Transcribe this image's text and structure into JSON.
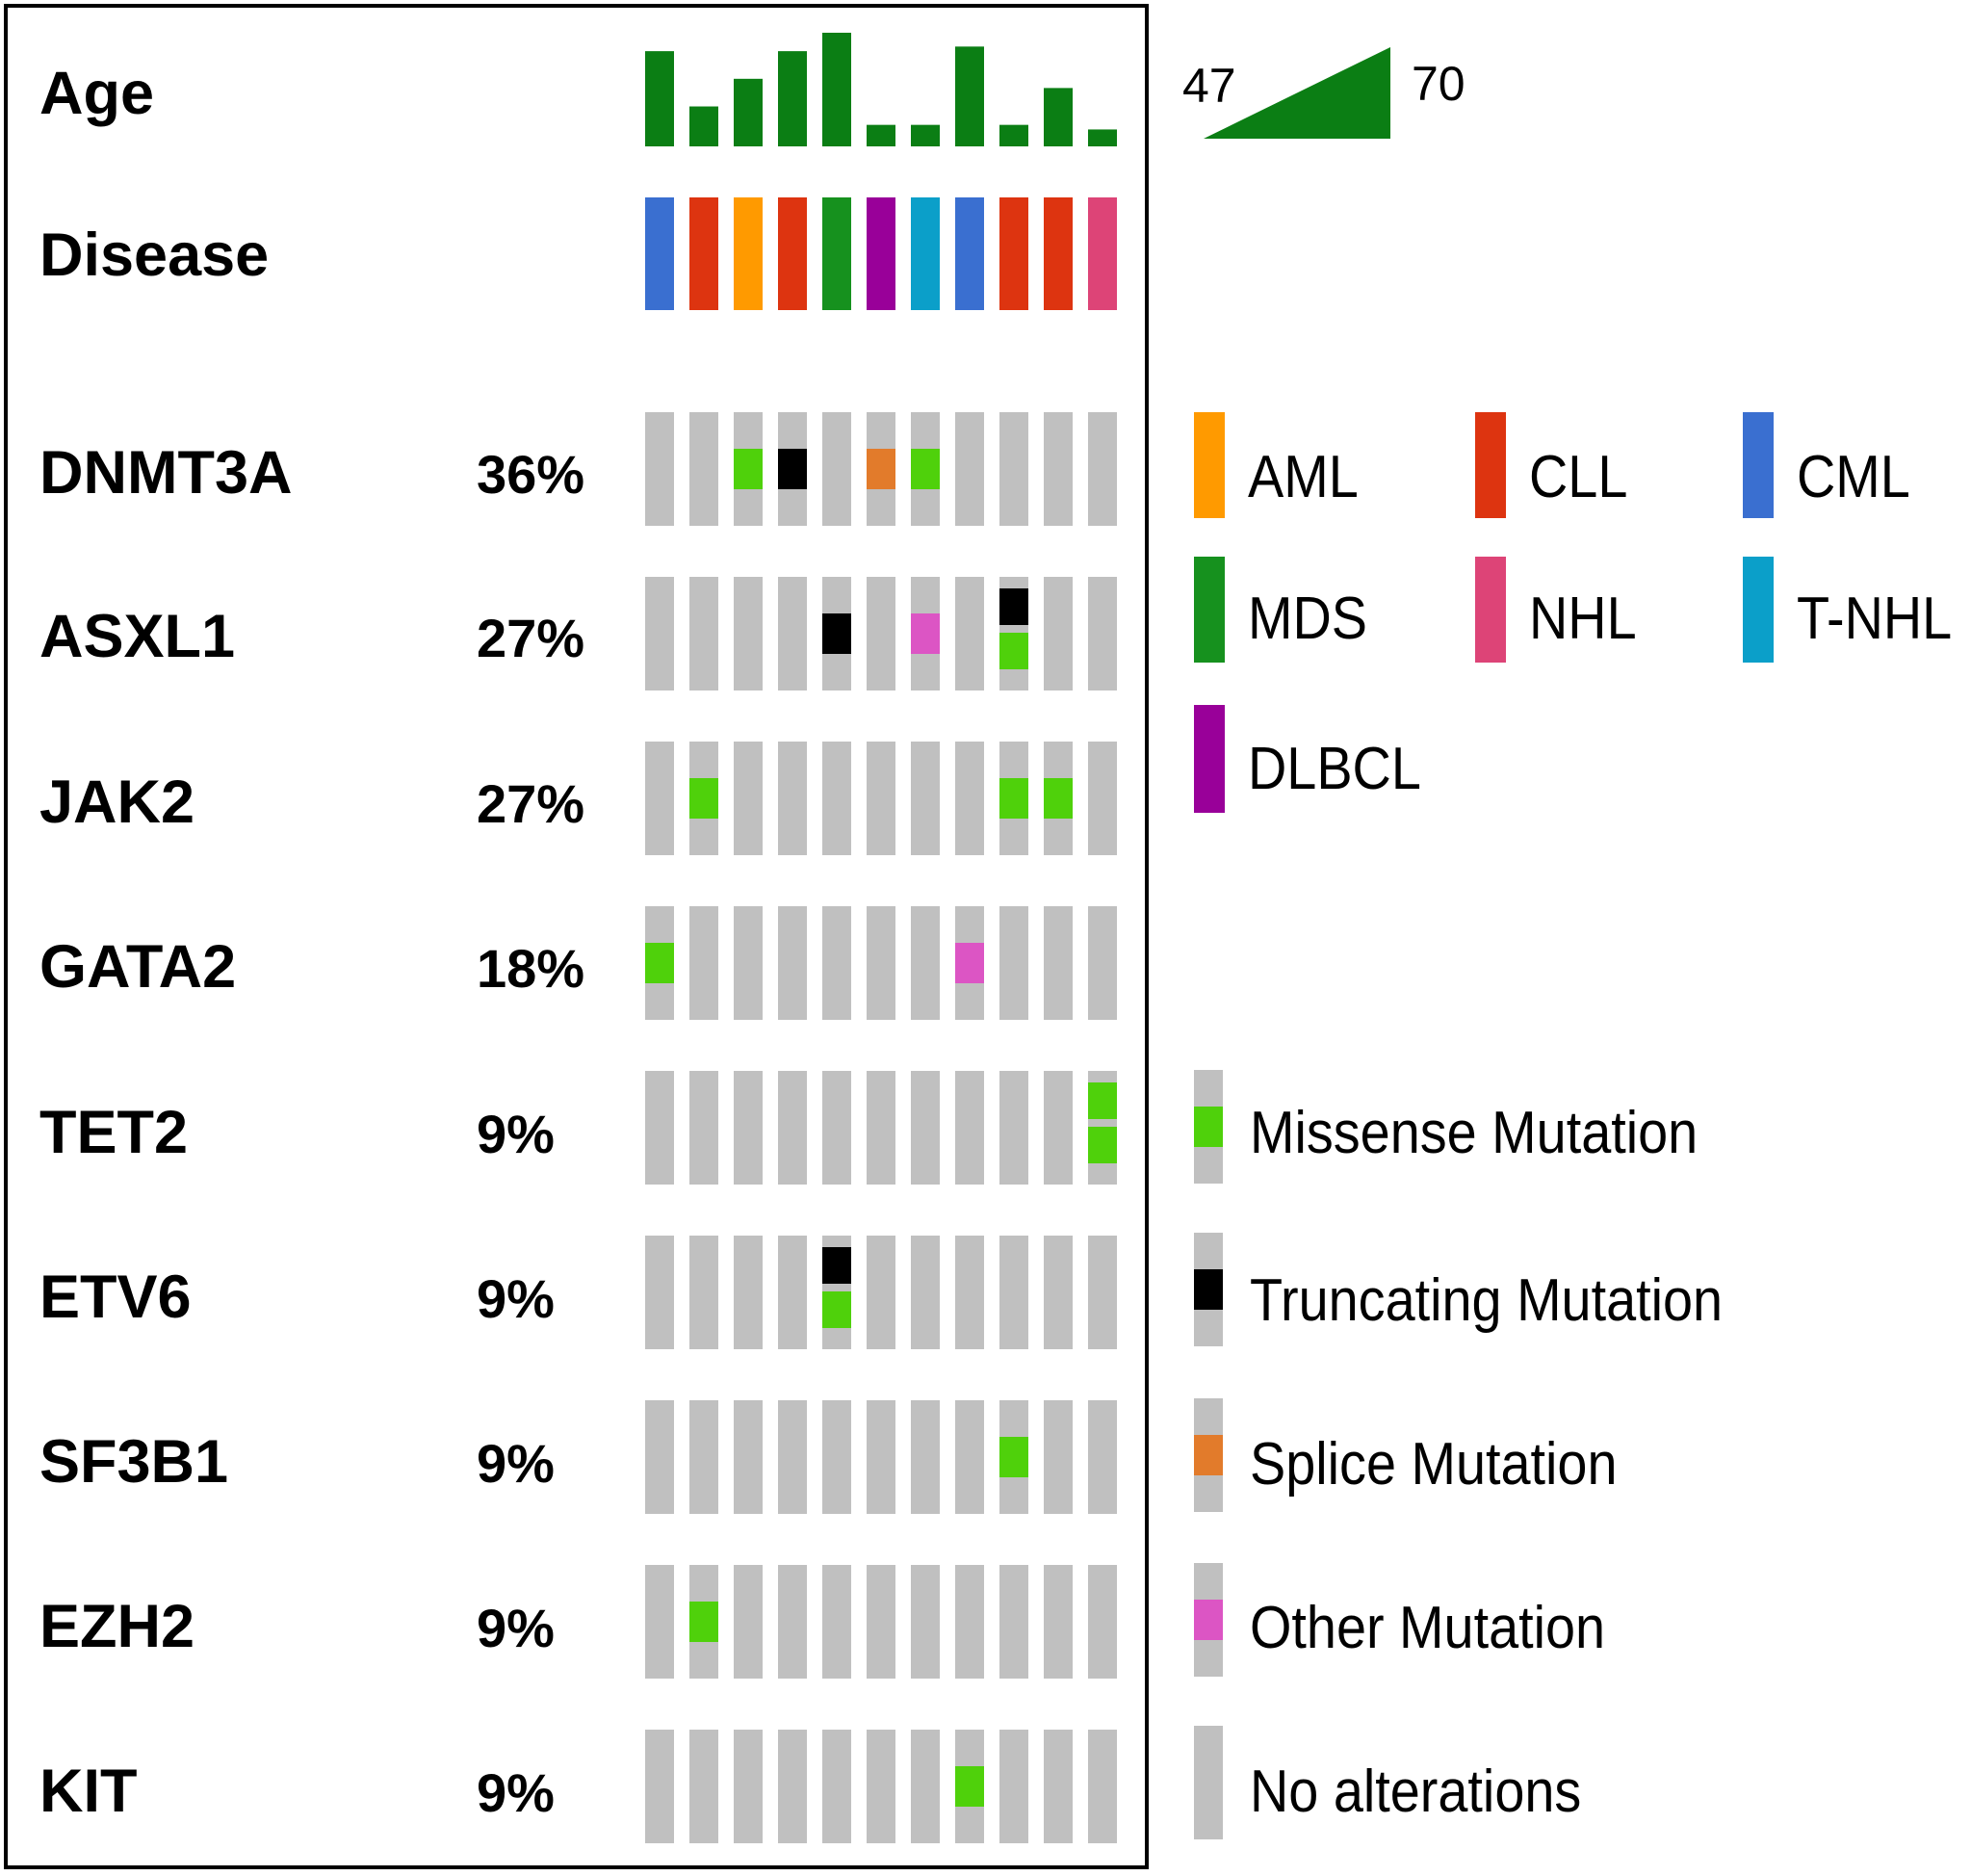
{
  "chart_data": {
    "type": "oncoprint",
    "n_samples": 11,
    "age": {
      "label": "Age",
      "min": 47,
      "max": 70,
      "values": [
        66,
        54,
        60,
        66,
        70,
        50,
        50,
        67,
        50,
        58,
        49
      ]
    },
    "disease": {
      "label": "Disease",
      "values": [
        "CML",
        "CLL",
        "AML",
        "CLL",
        "MDS",
        "DLBCL",
        "T-NHL",
        "CML",
        "CLL",
        "CLL",
        "NHL"
      ]
    },
    "genes": [
      {
        "name": "DNMT3A",
        "percent": "36%",
        "alterations": [
          [],
          [],
          [
            "missense"
          ],
          [
            "truncating"
          ],
          [],
          [
            "splice"
          ],
          [
            "missense"
          ],
          [],
          [],
          [],
          []
        ]
      },
      {
        "name": "ASXL1",
        "percent": "27%",
        "alterations": [
          [],
          [],
          [],
          [],
          [
            "truncating"
          ],
          [],
          [
            "other"
          ],
          [],
          [
            "truncating",
            "missense"
          ],
          [],
          []
        ]
      },
      {
        "name": "JAK2",
        "percent": "27%",
        "alterations": [
          [],
          [
            "missense"
          ],
          [],
          [],
          [],
          [],
          [],
          [],
          [
            "missense"
          ],
          [
            "missense"
          ],
          []
        ]
      },
      {
        "name": "GATA2",
        "percent": "18%",
        "alterations": [
          [
            "missense"
          ],
          [],
          [],
          [],
          [],
          [],
          [],
          [
            "other"
          ],
          [],
          [],
          []
        ]
      },
      {
        "name": "TET2",
        "percent": "9%",
        "alterations": [
          [],
          [],
          [],
          [],
          [],
          [],
          [],
          [],
          [],
          [],
          [
            "missense",
            "missense"
          ]
        ]
      },
      {
        "name": "ETV6",
        "percent": "9%",
        "alterations": [
          [],
          [],
          [],
          [],
          [
            "truncating",
            "missense"
          ],
          [],
          [],
          [],
          [],
          [],
          []
        ]
      },
      {
        "name": "SF3B1",
        "percent": "9%",
        "alterations": [
          [],
          [],
          [],
          [],
          [],
          [],
          [],
          [],
          [
            "missense"
          ],
          [],
          []
        ]
      },
      {
        "name": "EZH2",
        "percent": "9%",
        "alterations": [
          [],
          [
            "missense"
          ],
          [],
          [],
          [],
          [],
          [],
          [],
          [],
          [],
          []
        ]
      },
      {
        "name": "KIT",
        "percent": "9%",
        "alterations": [
          [],
          [],
          [],
          [],
          [],
          [],
          [],
          [
            "missense"
          ],
          [],
          [],
          []
        ]
      }
    ],
    "disease_legend": [
      {
        "label": "AML",
        "color": "#ff9a00"
      },
      {
        "label": "CLL",
        "color": "#dd3410"
      },
      {
        "label": "CML",
        "color": "#3a6fd0"
      },
      {
        "label": "MDS",
        "color": "#16911e"
      },
      {
        "label": "NHL",
        "color": "#dd4477"
      },
      {
        "label": "T-NHL",
        "color": "#0b9fc9"
      },
      {
        "label": "DLBCL",
        "color": "#990099"
      }
    ],
    "alteration_legend": [
      {
        "key": "missense",
        "label": "Missense Mutation",
        "color": "#4fd10b"
      },
      {
        "key": "truncating",
        "label": "Truncating Mutation",
        "color": "#000000"
      },
      {
        "key": "splice",
        "label": "Splice Mutation",
        "color": "#e27b2b"
      },
      {
        "key": "other",
        "label": "Other Mutation",
        "color": "#dc55c4"
      },
      {
        "key": "none",
        "label": "No alterations",
        "color": ""
      }
    ],
    "colors": {
      "age_bar": "#0b7e14",
      "no_alteration": "#c0c0c0"
    }
  }
}
